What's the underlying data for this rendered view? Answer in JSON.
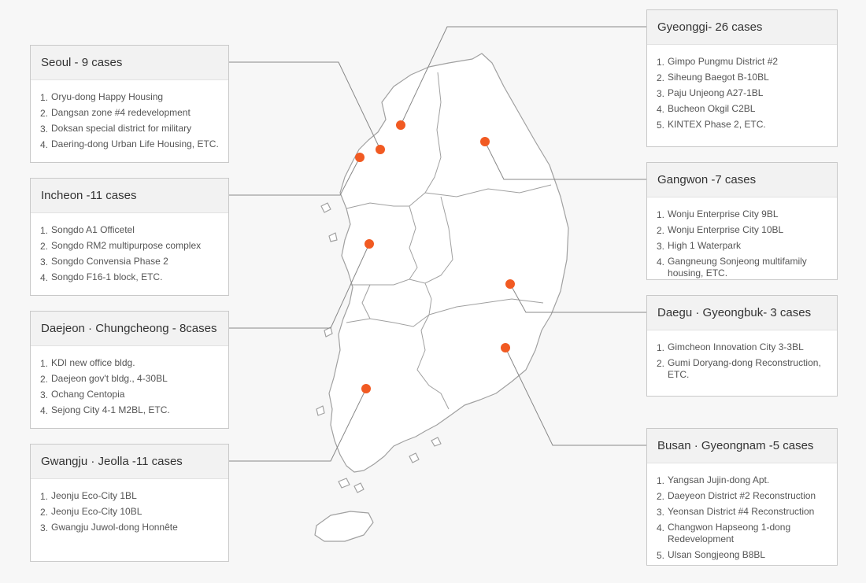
{
  "marker_color": "#f15a22",
  "map_fill": "#ffffff",
  "map_stroke": "#999999",
  "leader_color": "#888888",
  "regions": {
    "seoul": {
      "title": "Seoul - 9 cases",
      "items": [
        {
          "num": "1.",
          "text": "Oryu-dong Happy Housing"
        },
        {
          "num": "2.",
          "text": "Dangsan zone #4 redevelopment"
        },
        {
          "num": "3.",
          "text": "Doksan special district for military"
        },
        {
          "num": "4.",
          "text": "Daering-dong Urban Life Housing, ETC."
        }
      ]
    },
    "incheon": {
      "title": "Incheon -11 cases",
      "items": [
        {
          "num": "1.",
          "text": "Songdo A1 Officetel"
        },
        {
          "num": "2.",
          "text": "Songdo RM2 multipurpose complex"
        },
        {
          "num": "3.",
          "text": "Songdo Convensia Phase 2"
        },
        {
          "num": "4.",
          "text": "Songdo F16-1 block, ETC."
        }
      ]
    },
    "daejeon": {
      "title": "Daejeon · Chungcheong - 8cases",
      "items": [
        {
          "num": "1.",
          "text": "KDI new office bldg."
        },
        {
          "num": "2.",
          "text": "Daejeon gov't bldg., 4-30BL"
        },
        {
          "num": "3.",
          "text": "Ochang Centopia"
        },
        {
          "num": "4.",
          "text": "Sejong City 4-1 M2BL, ETC."
        }
      ]
    },
    "gwangju": {
      "title": "Gwangju · Jeolla -11 cases",
      "items": [
        {
          "num": "1.",
          "text": "Jeonju Eco-City 1BL"
        },
        {
          "num": "2.",
          "text": "Jeonju Eco-City 10BL"
        },
        {
          "num": "3.",
          "text": "Gwangju Juwol-dong Honnête"
        }
      ]
    },
    "gyeonggi": {
      "title": "Gyeonggi- 26 cases",
      "items": [
        {
          "num": "1.",
          "text": "Gimpo Pungmu District #2"
        },
        {
          "num": "2.",
          "text": "Siheung Baegot B-10BL"
        },
        {
          "num": "3.",
          "text": "Paju Unjeong A27-1BL"
        },
        {
          "num": "4.",
          "text": "Bucheon Okgil C2BL"
        },
        {
          "num": "5.",
          "text": "KINTEX Phase 2, ETC."
        }
      ]
    },
    "gangwon": {
      "title": "Gangwon -7 cases",
      "items": [
        {
          "num": "1.",
          "text": "Wonju Enterprise City 9BL"
        },
        {
          "num": "2.",
          "text": "Wonju Enterprise City 10BL"
        },
        {
          "num": "3.",
          "text": "High 1 Waterpark"
        },
        {
          "num": "4.",
          "text": "Gangneung Sonjeong multifamily housing, ETC."
        }
      ]
    },
    "daegu": {
      "title": "Daegu · Gyeongbuk- 3 cases",
      "items": [
        {
          "num": "1.",
          "text": "Gimcheon Innovation City 3-3BL"
        },
        {
          "num": "2.",
          "text": "Gumi Doryang-dong Reconstruction, ETC."
        }
      ]
    },
    "busan": {
      "title": "Busan · Gyeongnam -5 cases",
      "items": [
        {
          "num": "1.",
          "text": "Yangsan Jujin-dong Apt."
        },
        {
          "num": "2.",
          "text": "Daeyeon District #2 Reconstruction"
        },
        {
          "num": "3.",
          "text": "Yeonsan District #4 Reconstruction"
        },
        {
          "num": "4.",
          "text": "Changwon Hapseong 1-dong Redevelopment"
        },
        {
          "num": "5.",
          "text": "Ulsan Songjeong B8BL"
        }
      ]
    }
  }
}
